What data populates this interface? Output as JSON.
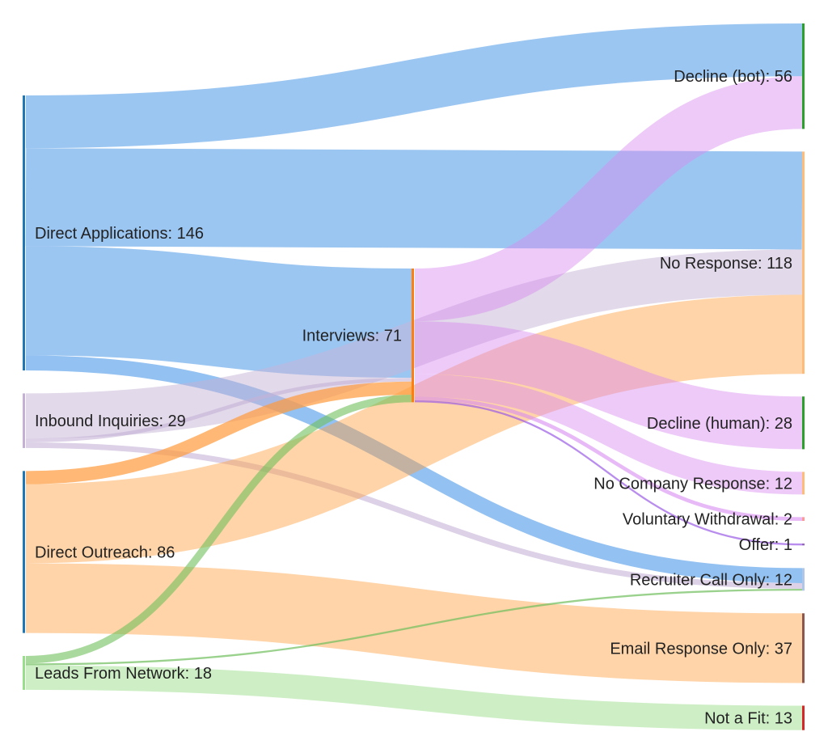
{
  "chart_data": {
    "type": "sankey",
    "title": "",
    "nodes": [
      {
        "id": "da",
        "label": "Direct Applications: 146",
        "name": "Direct Applications",
        "value": 146,
        "column": 0,
        "color": "#1f77b4"
      },
      {
        "id": "ii",
        "label": "Inbound Inquiries: 29",
        "name": "Inbound Inquiries",
        "value": 29,
        "column": 0,
        "color": "#c5b0d5"
      },
      {
        "id": "do",
        "label": "Direct Outreach: 86",
        "name": "Direct Outreach",
        "value": 86,
        "column": 0,
        "color": "#1f77b4"
      },
      {
        "id": "ln",
        "label": "Leads From Network: 18",
        "name": "Leads From Network",
        "value": 18,
        "column": 0,
        "color": "#98df8a"
      },
      {
        "id": "iv",
        "label": "Interviews: 71",
        "name": "Interviews",
        "value": 71,
        "column": 1,
        "color": "#ff7f0e"
      },
      {
        "id": "db",
        "label": "Decline (bot): 56",
        "name": "Decline (bot)",
        "value": 56,
        "column": 2,
        "color": "#2ca02c"
      },
      {
        "id": "nr",
        "label": "No Response: 118",
        "name": "No Response",
        "value": 118,
        "column": 2,
        "color": "#ffbb78"
      },
      {
        "id": "dh",
        "label": "Decline (human): 28",
        "name": "Decline (human)",
        "value": 28,
        "column": 2,
        "color": "#2ca02c"
      },
      {
        "id": "nc",
        "label": "No Company Response: 12",
        "name": "No Company Response",
        "value": 12,
        "column": 2,
        "color": "#ffbb78"
      },
      {
        "id": "vw",
        "label": "Voluntary Withdrawal: 2",
        "name": "Voluntary Withdrawal",
        "value": 2,
        "column": 2,
        "color": "#ff9896"
      },
      {
        "id": "of",
        "label": "Offer: 1",
        "name": "Offer",
        "value": 1,
        "column": 2,
        "color": "#9467bd"
      },
      {
        "id": "rc",
        "label": "Recruiter Call Only: 12",
        "name": "Recruiter Call Only",
        "value": 12,
        "column": 2,
        "color": "#aec7e8"
      },
      {
        "id": "er",
        "label": "Email Response Only: 37",
        "name": "Email Response Only",
        "value": 37,
        "column": 2,
        "color": "#8c564b"
      },
      {
        "id": "nf",
        "label": "Not a Fit: 13",
        "name": "Not a Fit",
        "value": 13,
        "column": 2,
        "color": "#d62728"
      }
    ],
    "links": [
      {
        "source": "da",
        "target": "db",
        "value": 28,
        "color": "#3a8ee6",
        "opacity": 0.5
      },
      {
        "source": "da",
        "target": "nr",
        "value": 52,
        "color": "#3a8ee6",
        "opacity": 0.5
      },
      {
        "source": "da",
        "target": "iv",
        "value": 58,
        "color": "#3a8ee6",
        "opacity": 0.5
      },
      {
        "source": "da",
        "target": "rc",
        "value": 8,
        "color": "#3a8ee6",
        "opacity": 0.55
      },
      {
        "source": "ii",
        "target": "nr",
        "value": 24,
        "color": "#c5b3d6",
        "opacity": 0.5
      },
      {
        "source": "ii",
        "target": "iv",
        "value": 2,
        "color": "#c5b3d6",
        "opacity": 0.6
      },
      {
        "source": "ii",
        "target": "rc",
        "value": 3,
        "color": "#c5b3d6",
        "opacity": 0.6
      },
      {
        "source": "do",
        "target": "iv",
        "value": 7,
        "color": "#ff9a3a",
        "opacity": 0.7
      },
      {
        "source": "do",
        "target": "nr",
        "value": 42,
        "color": "#ff9f40",
        "opacity": 0.45
      },
      {
        "source": "do",
        "target": "er",
        "value": 37,
        "color": "#ff9f40",
        "opacity": 0.45
      },
      {
        "source": "ln",
        "target": "iv",
        "value": 4,
        "color": "#6fbf5c",
        "opacity": 0.6
      },
      {
        "source": "ln",
        "target": "rc",
        "value": 1,
        "color": "#6fbf5c",
        "opacity": 0.7
      },
      {
        "source": "ln",
        "target": "nf",
        "value": 13,
        "color": "#93db81",
        "opacity": 0.45
      },
      {
        "source": "iv",
        "target": "db",
        "value": 28,
        "color": "#d78af0",
        "opacity": 0.45
      },
      {
        "source": "iv",
        "target": "dh",
        "value": 28,
        "color": "#d78af0",
        "opacity": 0.45
      },
      {
        "source": "iv",
        "target": "nc",
        "value": 12,
        "color": "#d78af0",
        "opacity": 0.45
      },
      {
        "source": "iv",
        "target": "vw",
        "value": 2,
        "color": "#d78af0",
        "opacity": 0.6
      },
      {
        "source": "iv",
        "target": "of",
        "value": 1,
        "color": "#9b5de5",
        "opacity": 0.7
      }
    ]
  }
}
